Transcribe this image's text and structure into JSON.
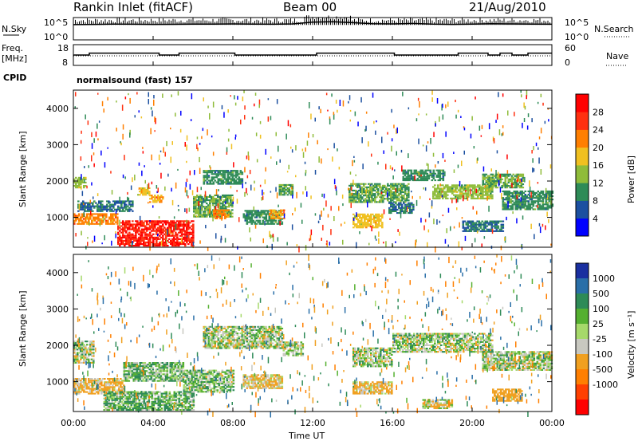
{
  "header": {
    "station": "Rankin Inlet (fitACF)",
    "beam": "Beam 00",
    "date": "21/Aug/2010"
  },
  "noise_panel": {
    "left_label": "N.Sky",
    "left_top": "10^5",
    "left_bottom": "10^0",
    "right_label": "N.Search",
    "right_top": "10^5",
    "right_bottom": "10^0"
  },
  "freq_panel": {
    "left_label_1": "Freq.",
    "left_label_2": "[MHz]",
    "left_top": "18",
    "left_bottom": "8",
    "right_label": "Nave",
    "right_top": "60",
    "right_bottom": "0"
  },
  "cpid": {
    "label": "CPID",
    "value": "normalsound (fast) 157"
  },
  "x_ticks": [
    "00:00",
    "04:00",
    "08:00",
    "12:00",
    "16:00",
    "20:00",
    "00:00"
  ],
  "x_label": "Time UT",
  "y_ticks": [
    "1000",
    "2000",
    "3000",
    "4000"
  ],
  "power_panel": {
    "ylabel": "Slant Range [km]",
    "colorbar_label": "Power [dB]",
    "colorbar_ticks": [
      "4",
      "8",
      "12",
      "16",
      "20",
      "24",
      "28"
    ],
    "colors": [
      "#0000ff",
      "#1c50a0",
      "#2e8b57",
      "#8fbc3a",
      "#f0c020",
      "#ff7f00",
      "#ff3010",
      "#ff0000"
    ]
  },
  "velocity_panel": {
    "ylabel": "Slant Range [km]",
    "colorbar_label": "Velocity [m s⁻¹]",
    "colorbar_ticks": [
      "1000",
      "500",
      "100",
      "25",
      "-25",
      "-100",
      "-500",
      "-1000"
    ],
    "colors": [
      "#1a2fa0",
      "#2a6fa8",
      "#2e8b57",
      "#55b030",
      "#a6d96a",
      "#c8c8c0",
      "#f0a020",
      "#ff7f00",
      "#ff4000",
      "#ff0000"
    ]
  },
  "chart_data": [
    {
      "type": "line",
      "title": "",
      "xlabel": "",
      "ylabel": "N.Sky",
      "x_range_hours": [
        0,
        24
      ],
      "y_scale": "log",
      "ylim": [
        1,
        100000
      ],
      "series": [
        {
          "x": [
            0,
            1,
            2,
            3,
            4,
            5,
            6,
            7,
            8,
            9,
            10,
            11,
            12,
            13,
            14,
            15,
            16,
            17,
            18,
            19,
            20,
            21,
            22,
            23,
            24
          ],
          "values": [
            3000,
            3500,
            4000,
            3800,
            3500,
            3600,
            3900,
            4200,
            4500,
            4000,
            3800,
            4500,
            12000,
            15000,
            9000,
            5000,
            4500,
            6000,
            4000,
            3500,
            4200,
            5000,
            4500,
            4000,
            3800
          ]
        }
      ]
    },
    {
      "type": "line",
      "title": "",
      "xlabel": "",
      "ylabel": "Freq. [MHz]",
      "x_range_hours": [
        0,
        24
      ],
      "ylim": [
        8,
        18
      ],
      "series": [
        {
          "x": [
            0,
            0.6,
            0.8,
            4.0,
            4.3,
            5.0,
            5.3,
            7.9,
            8.1,
            11.0,
            11.2,
            12.0,
            12.2,
            15.9,
            16.1,
            19.0,
            19.3,
            20.5,
            20.8,
            21.0,
            21.4,
            21.8,
            22.0,
            22.6,
            22.8,
            24
          ],
          "values": [
            13,
            13,
            14,
            14,
            13,
            13,
            14,
            14,
            13,
            13,
            13,
            13,
            14,
            14,
            13,
            13,
            14,
            14,
            13,
            13,
            14,
            14,
            13,
            13,
            14,
            14
          ]
        }
      ]
    },
    {
      "type": "heatmap",
      "title": "",
      "xlabel": "Time UT",
      "ylabel": "Slant Range [km]",
      "x_range_hours": [
        0,
        24
      ],
      "ylim": [
        180,
        4500
      ],
      "z_label": "Power [dB]",
      "z_range": [
        0,
        30
      ],
      "bands": [
        {
          "t0": 0.0,
          "t1": 0.6,
          "r0": 1800,
          "r1": 2100,
          "z": 14
        },
        {
          "t0": 0.2,
          "t1": 3.0,
          "r0": 1150,
          "r1": 1450,
          "z": 8
        },
        {
          "t0": 0.0,
          "t1": 2.2,
          "r0": 800,
          "r1": 1100,
          "z": 22
        },
        {
          "t0": 2.2,
          "t1": 6.0,
          "r0": 200,
          "r1": 900,
          "z": 28
        },
        {
          "t0": 3.2,
          "t1": 3.8,
          "r0": 1600,
          "r1": 1800,
          "z": 18
        },
        {
          "t0": 3.8,
          "t1": 4.5,
          "r0": 1400,
          "r1": 1600,
          "z": 20
        },
        {
          "t0": 6.0,
          "t1": 8.0,
          "r0": 1000,
          "r1": 1600,
          "z": 12
        },
        {
          "t0": 6.5,
          "t1": 8.5,
          "r0": 1900,
          "r1": 2300,
          "z": 10
        },
        {
          "t0": 7.0,
          "t1": 7.8,
          "r0": 950,
          "r1": 1200,
          "z": 22
        },
        {
          "t0": 8.5,
          "t1": 10.5,
          "r0": 800,
          "r1": 1200,
          "z": 10
        },
        {
          "t0": 9.8,
          "t1": 10.6,
          "r0": 950,
          "r1": 1200,
          "z": 20
        },
        {
          "t0": 10.3,
          "t1": 11.0,
          "r0": 1600,
          "r1": 1900,
          "z": 12
        },
        {
          "t0": 13.8,
          "t1": 16.8,
          "r0": 1400,
          "r1": 1900,
          "z": 12
        },
        {
          "t0": 14.0,
          "t1": 15.5,
          "r0": 700,
          "r1": 1100,
          "z": 18
        },
        {
          "t0": 15.8,
          "t1": 17.0,
          "r0": 1100,
          "r1": 1400,
          "z": 8
        },
        {
          "t0": 16.5,
          "t1": 18.5,
          "r0": 2000,
          "r1": 2300,
          "z": 10
        },
        {
          "t0": 18.0,
          "t1": 21.0,
          "r0": 1500,
          "r1": 1900,
          "z": 14
        },
        {
          "t0": 20.5,
          "t1": 22.5,
          "r0": 1800,
          "r1": 2200,
          "z": 12
        },
        {
          "t0": 21.5,
          "t1": 24.0,
          "r0": 1200,
          "r1": 1700,
          "z": 10
        },
        {
          "t0": 19.5,
          "t1": 21.5,
          "r0": 600,
          "r1": 900,
          "z": 8
        }
      ]
    },
    {
      "type": "heatmap",
      "title": "",
      "xlabel": "Time UT",
      "ylabel": "Slant Range [km]",
      "x_range_hours": [
        0,
        24
      ],
      "ylim": [
        180,
        4500
      ],
      "z_label": "Velocity [m s-1]",
      "z_range": [
        -1000,
        1000
      ],
      "bands": [
        {
          "t0": 0.0,
          "t1": 1.0,
          "r0": 1500,
          "r1": 2100,
          "z": 0
        },
        {
          "t0": 0.0,
          "t1": 2.5,
          "r0": 650,
          "r1": 1100,
          "z": -150
        },
        {
          "t0": 1.5,
          "t1": 6.0,
          "r0": 200,
          "r1": 700,
          "z": 80
        },
        {
          "t0": 2.5,
          "t1": 5.5,
          "r0": 1000,
          "r1": 1500,
          "z": 60
        },
        {
          "t0": 5.5,
          "t1": 8.0,
          "r0": 700,
          "r1": 1300,
          "z": 40
        },
        {
          "t0": 6.5,
          "t1": 10.5,
          "r0": 1900,
          "r1": 2500,
          "z": 0
        },
        {
          "t0": 8.5,
          "t1": 10.5,
          "r0": 800,
          "r1": 1200,
          "z": -120
        },
        {
          "t0": 10.5,
          "t1": 11.5,
          "r0": 1700,
          "r1": 2100,
          "z": 0
        },
        {
          "t0": 14.0,
          "t1": 16.0,
          "r0": 1400,
          "r1": 1900,
          "z": 0
        },
        {
          "t0": 14.0,
          "t1": 16.0,
          "r0": 650,
          "r1": 1000,
          "z": -150
        },
        {
          "t0": 16.0,
          "t1": 21.0,
          "r0": 1800,
          "r1": 2300,
          "z": 0
        },
        {
          "t0": 20.5,
          "t1": 24.0,
          "r0": 1300,
          "r1": 1800,
          "z": 0
        },
        {
          "t0": 21.0,
          "t1": 22.5,
          "r0": 450,
          "r1": 800,
          "z": -300
        },
        {
          "t0": 17.5,
          "t1": 19.0,
          "r0": 250,
          "r1": 500,
          "z": -60
        }
      ]
    }
  ]
}
